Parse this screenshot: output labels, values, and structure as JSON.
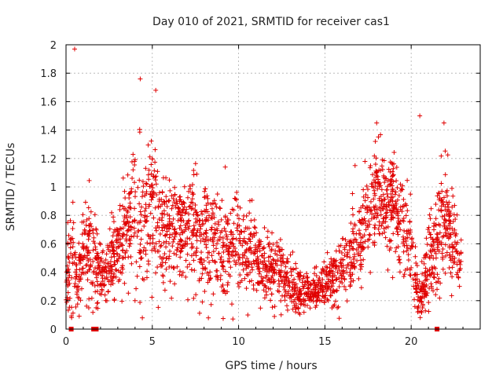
{
  "chart_data": {
    "type": "scatter",
    "title": "Day 010 of 2021, SRMTID for receiver cas1",
    "xlabel": "GPS time / hours",
    "ylabel": "SRMTID / TECUs",
    "xlim": [
      0,
      24
    ],
    "ylim": [
      0,
      2
    ],
    "x_ticks": [
      "0",
      "5",
      "10",
      "15",
      "20"
    ],
    "y_ticks": [
      "0",
      "0.2",
      "0.4",
      "0.6",
      "0.8",
      "1",
      "1.2",
      "1.4",
      "1.6",
      "1.8",
      "2"
    ],
    "grid": true,
    "marker": "+",
    "color": "#e00000",
    "series": [
      {
        "name": "SRMTID",
        "profile_hours": [
          0,
          0.3,
          0.6,
          1.0,
          1.5,
          2.0,
          2.5,
          3.0,
          3.5,
          4.0,
          4.5,
          5.0,
          5.5,
          6.0,
          7.0,
          8.0,
          9.0,
          10.0,
          11.0,
          12.0,
          12.5,
          13.0,
          13.5,
          14.0,
          14.5,
          15.0,
          15.5,
          16.0,
          16.5,
          17.0,
          17.5,
          18.0,
          18.5,
          19.0,
          19.5,
          20.0,
          20.4,
          20.8,
          21.2,
          21.6,
          22.0,
          22.5,
          22.9
        ],
        "profile_median": [
          0.35,
          0.5,
          0.3,
          0.55,
          0.6,
          0.35,
          0.45,
          0.55,
          0.7,
          0.8,
          0.75,
          0.9,
          0.7,
          0.65,
          0.7,
          0.65,
          0.6,
          0.55,
          0.5,
          0.42,
          0.38,
          0.3,
          0.27,
          0.25,
          0.28,
          0.32,
          0.36,
          0.42,
          0.5,
          0.65,
          0.8,
          0.95,
          0.9,
          0.85,
          0.7,
          0.6,
          0.2,
          0.35,
          0.45,
          0.7,
          0.8,
          0.55,
          0.45
        ],
        "profile_spread": [
          0.25,
          0.4,
          0.25,
          0.3,
          0.35,
          0.2,
          0.25,
          0.3,
          0.35,
          0.45,
          0.5,
          0.5,
          0.4,
          0.35,
          0.35,
          0.35,
          0.3,
          0.3,
          0.25,
          0.2,
          0.18,
          0.15,
          0.13,
          0.12,
          0.13,
          0.15,
          0.17,
          0.2,
          0.25,
          0.3,
          0.3,
          0.3,
          0.3,
          0.3,
          0.3,
          0.3,
          0.1,
          0.25,
          0.3,
          0.35,
          0.35,
          0.3,
          0.25
        ],
        "max_points": [
          {
            "x": 0.5,
            "y": 1.97
          },
          {
            "x": 4.3,
            "y": 1.76
          },
          {
            "x": 5.2,
            "y": 1.68
          },
          {
            "x": 18.0,
            "y": 1.45
          },
          {
            "x": 20.5,
            "y": 1.5
          },
          {
            "x": 21.9,
            "y": 1.45
          }
        ]
      }
    ],
    "gap_markers": [
      0.3,
      1.6,
      1.75,
      21.5
    ]
  }
}
